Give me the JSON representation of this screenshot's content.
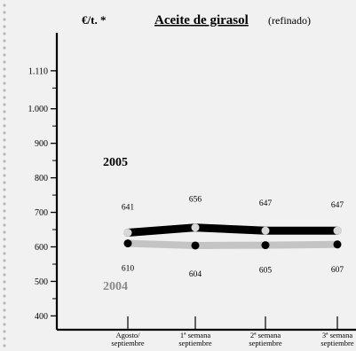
{
  "chart_data": {
    "type": "line",
    "title": "Aceite de girasol",
    "subtitle": "(refinado)",
    "unit": "€/t. *",
    "categories": [
      [
        "Agosto/",
        "septiembre"
      ],
      [
        "1ª semana",
        "septiembre"
      ],
      [
        "2ª semana",
        "septiembre"
      ],
      [
        "3ª semana",
        "septiembre"
      ]
    ],
    "y_ticks": [
      "1.110",
      "1.000",
      "900",
      "800",
      "700",
      "600",
      "500",
      "400"
    ],
    "ylim": [
      360,
      1220
    ],
    "grid": false,
    "series": [
      {
        "name": "2005",
        "values": [
          641,
          656,
          647,
          647
        ],
        "line_color": "#000000",
        "marker_color": "#d8d8d8",
        "label_color": "#000000"
      },
      {
        "name": "2004",
        "values": [
          610,
          604,
          605,
          607
        ],
        "line_color": "#c4c4c4",
        "marker_color": "#000000",
        "label_color": "#8a8a8a"
      }
    ]
  }
}
